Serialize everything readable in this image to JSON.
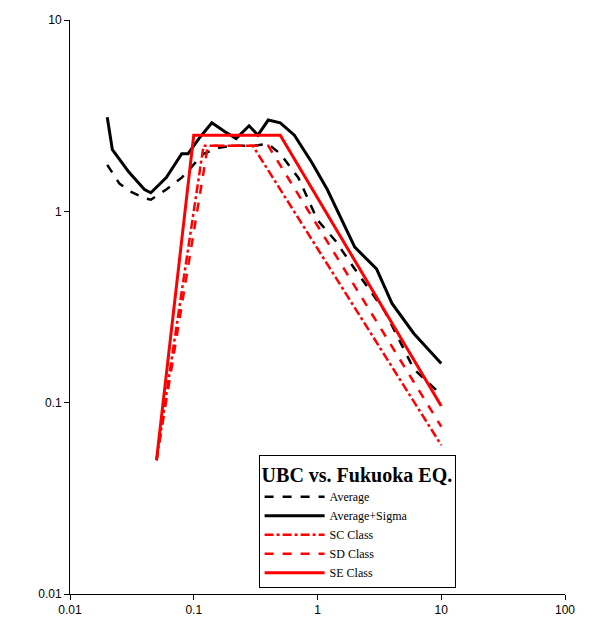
{
  "chart_data": {
    "type": "line",
    "log": true,
    "grid": false,
    "legend": "lower center",
    "legend_title": "UBC vs. Fukuoka EQ.",
    "xlim": [
      0.01,
      100
    ],
    "xticks": [
      0.01,
      0.1,
      1,
      10,
      100
    ],
    "ylim": [
      0.01,
      10
    ],
    "yticks": [
      0.01,
      0.1,
      1,
      10
    ],
    "series": [
      {
        "name": "Average",
        "color": "#000000",
        "line_style": "dash",
        "x": [
          0.02,
          0.025,
          0.03,
          0.04,
          0.045,
          0.06,
          0.08,
          0.1,
          0.12,
          0.16,
          0.2,
          0.3,
          0.4,
          0.5,
          0.7,
          1.0,
          1.4,
          2,
          3.5,
          6,
          10
        ],
        "values": [
          1.75,
          1.4,
          1.28,
          1.17,
          1.15,
          1.3,
          1.5,
          1.75,
          2.0,
          2.15,
          2.2,
          2.2,
          2.25,
          2.0,
          1.5,
          0.9,
          0.7,
          0.5,
          0.3,
          0.15,
          0.11
        ]
      },
      {
        "name": "Average+Sigma",
        "color": "#000000",
        "line_style": "solid",
        "x": [
          0.02,
          0.022,
          0.03,
          0.04,
          0.045,
          0.06,
          0.08,
          0.09,
          0.11,
          0.14,
          0.18,
          0.22,
          0.28,
          0.33,
          0.4,
          0.5,
          0.65,
          0.9,
          1.2,
          2,
          3,
          4,
          6,
          10
        ],
        "values": [
          3.1,
          2.1,
          1.6,
          1.3,
          1.25,
          1.5,
          2.0,
          2.0,
          2.4,
          2.9,
          2.6,
          2.4,
          2.8,
          2.5,
          3.0,
          2.9,
          2.5,
          1.8,
          1.3,
          0.65,
          0.5,
          0.33,
          0.23,
          0.16
        ]
      },
      {
        "name": "SC Class",
        "color": "#ff0000",
        "line_style": "dashdot",
        "x": [
          0.05,
          0.12,
          0.3,
          10
        ],
        "values": [
          0.05,
          2.2,
          2.2,
          0.06
        ]
      },
      {
        "name": "SD Class",
        "color": "#ff0000",
        "line_style": "dash",
        "x": [
          0.05,
          0.13,
          0.4,
          10
        ],
        "values": [
          0.05,
          2.2,
          2.2,
          0.075
        ]
      },
      {
        "name": "SE Class",
        "color": "#ff0000",
        "line_style": "solid",
        "x": [
          0.05,
          0.1,
          0.5,
          10
        ],
        "values": [
          0.05,
          2.5,
          2.5,
          0.096
        ]
      }
    ]
  }
}
